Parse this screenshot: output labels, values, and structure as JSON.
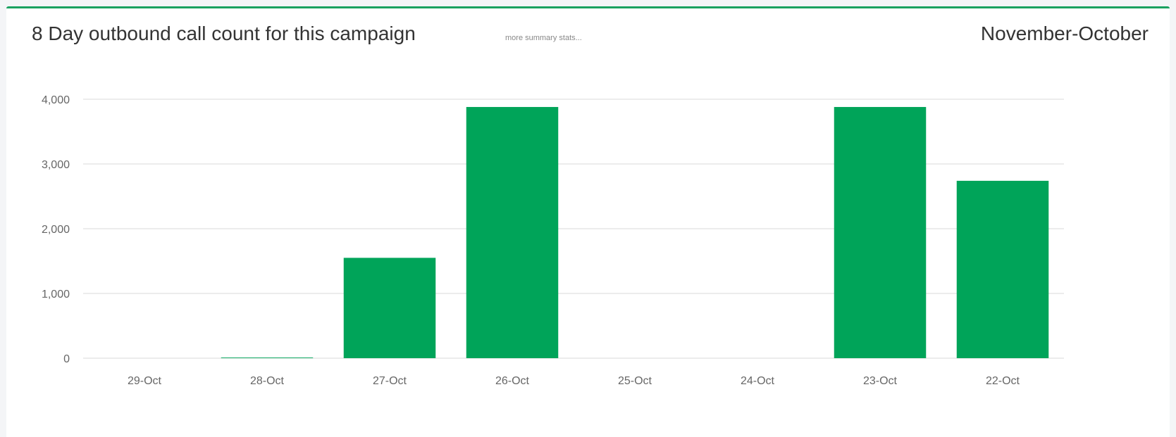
{
  "header": {
    "title": "8 Day outbound call count for this campaign",
    "summary_link": "more summary stats...",
    "period": "November-October"
  },
  "colors": {
    "bar": "#00a459",
    "grid": "#e6e6e6",
    "accent": "#1aa160"
  },
  "chart_data": {
    "type": "bar",
    "title": "8 Day outbound call count for this campaign",
    "categories": [
      "29-Oct",
      "28-Oct",
      "27-Oct",
      "26-Oct",
      "25-Oct",
      "24-Oct",
      "23-Oct",
      "22-Oct"
    ],
    "values": [
      0,
      10,
      1550,
      3880,
      0,
      0,
      3880,
      2740
    ],
    "yticks": [
      0,
      1000,
      2000,
      3000,
      4000
    ],
    "ytick_labels": [
      "0",
      "1,000",
      "2,000",
      "3,000",
      "4,000"
    ],
    "ylim": [
      0,
      4000
    ],
    "xlabel": "",
    "ylabel": "",
    "grid": true,
    "legend": "none"
  }
}
